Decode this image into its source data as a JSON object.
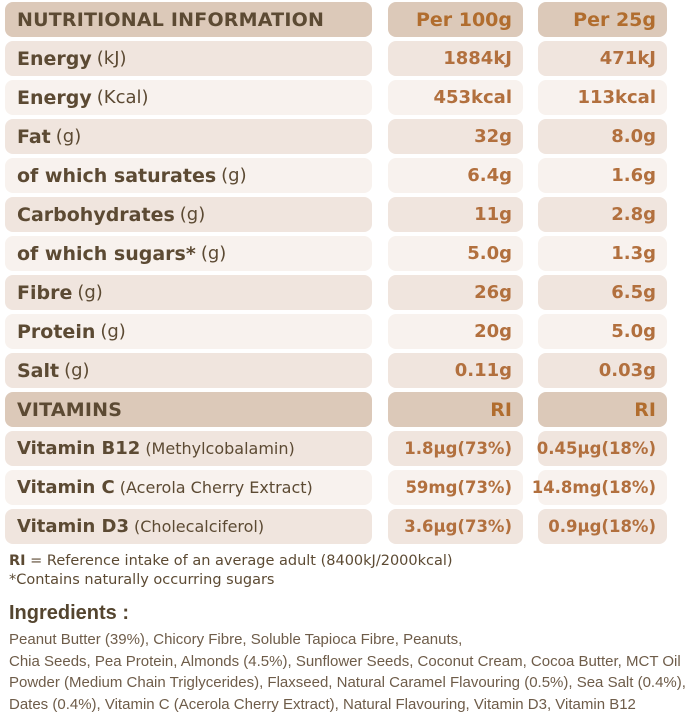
{
  "colors": {
    "header_bg": "#dcc9b9",
    "row_dark_bg": "#f0e5de",
    "row_light_bg": "#f8f2ee",
    "label_text": "#5c4a33",
    "header_value_text": "#b16d2e",
    "value_text": "#b2703e",
    "ingredients_text": "#6e5c49",
    "page_bg": "#ffffff"
  },
  "table": {
    "header": {
      "label": "NUTRITIONAL INFORMATION",
      "col_per100g": "Per 100g",
      "col_per25g": "Per 25g"
    },
    "rows": [
      {
        "label": "Energy",
        "unit": "(kJ)",
        "per100g": "1884kJ",
        "per25g": "471kJ"
      },
      {
        "label": "Energy",
        "unit": "(Kcal)",
        "per100g": "453kcal",
        "per25g": "113kcal"
      },
      {
        "label": "Fat",
        "unit": "(g)",
        "per100g": "32g",
        "per25g": "8.0g"
      },
      {
        "label": "of which saturates",
        "unit": "(g)",
        "per100g": "6.4g",
        "per25g": "1.6g"
      },
      {
        "label": "Carbohydrates",
        "unit": "(g)",
        "per100g": "11g",
        "per25g": "2.8g"
      },
      {
        "label": "of which sugars*",
        "unit": "(g)",
        "per100g": "5.0g",
        "per25g": "1.3g"
      },
      {
        "label": "Fibre",
        "unit": "(g)",
        "per100g": "26g",
        "per25g": "6.5g"
      },
      {
        "label": "Protein",
        "unit": "(g)",
        "per100g": "20g",
        "per25g": "5.0g"
      },
      {
        "label": "Salt",
        "unit": "(g)",
        "per100g": "0.11g",
        "per25g": "0.03g"
      }
    ],
    "vitamins_header": {
      "label": "VITAMINS",
      "col_per100g": "RI",
      "col_per25g": "RI"
    },
    "vitamin_rows": [
      {
        "label": "Vitamin B12",
        "unit": "(Methylcobalamin)",
        "per100g": "1.8µg(73%)",
        "per25g": "0.45µg(18%)"
      },
      {
        "label": "Vitamin C",
        "unit": "(Acerola Cherry Extract)",
        "per100g": "59mg(73%)",
        "per25g": "14.8mg(18%)"
      },
      {
        "label": "Vitamin D3",
        "unit": "(Cholecalciferol)",
        "per100g": "3.6µg(73%)",
        "per25g": "0.9µg(18%)"
      }
    ]
  },
  "notes": {
    "ri_abbr": "RI",
    "ri_text": " = Reference intake of an average adult (8400kJ/2000kcal)",
    "sugars_note": "*Contains naturally occurring sugars"
  },
  "ingredients": {
    "heading": "Ingredients :",
    "body": "Peanut Butter (39%), Chicory Fibre, Soluble Tapioca Fibre, Peanuts,\nChia Seeds, Pea Protein, Almonds (4.5%), Sunflower Seeds, Coconut Cream, Cocoa Butter, MCT Oil\nPowder (Medium Chain Triglycerides), Flaxseed, Natural Caramel Flavouring (0.5%), Sea Salt (0.4%),\nDates (0.4%), Vitamin C (Acerola Cherry Extract), Natural Flavouring, Vitamin D3, Vitamin B12"
  }
}
